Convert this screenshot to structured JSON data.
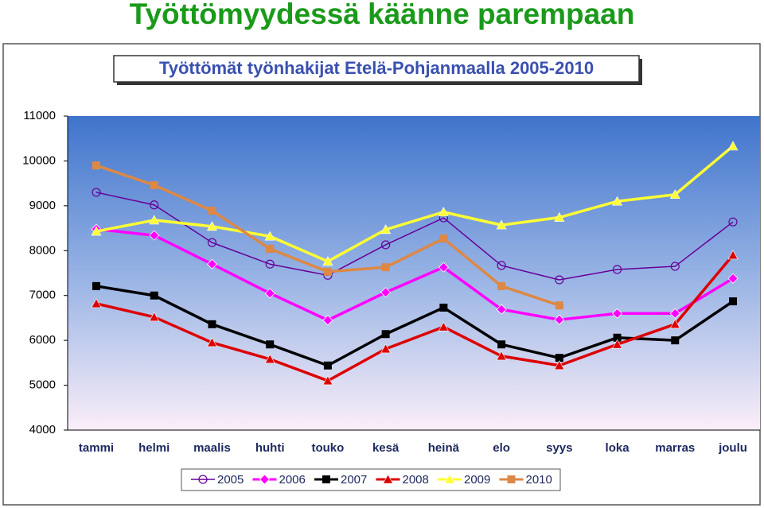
{
  "heading": "Työttömyydessä käänne parempaan",
  "chart_data": {
    "type": "line",
    "title": "Työttömät työnhakijat Etelä-Pohjanmaalla 2005-2010",
    "categories": [
      "tammi",
      "helmi",
      "maalis",
      "huhti",
      "touko",
      "kesä",
      "heinä",
      "elo",
      "syys",
      "loka",
      "marras",
      "joulu"
    ],
    "ylim": [
      4000,
      11000
    ],
    "yticks": [
      4000,
      5000,
      6000,
      7000,
      8000,
      9000,
      10000,
      11000
    ],
    "legend": "bottom",
    "series": [
      {
        "name": "2005",
        "color": "#660099",
        "marker": "circle",
        "values": [
          9300,
          9020,
          8180,
          7700,
          7450,
          8130,
          8730,
          7670,
          7350,
          7580,
          7650,
          8640
        ]
      },
      {
        "name": "2006",
        "color": "#ff00ff",
        "marker": "diamond",
        "values": [
          8480,
          8340,
          7700,
          7050,
          6450,
          7070,
          7630,
          6690,
          6460,
          6600,
          6600,
          7380
        ]
      },
      {
        "name": "2007",
        "color": "#000000",
        "marker": "square",
        "values": [
          7210,
          7000,
          6360,
          5910,
          5440,
          6140,
          6730,
          5910,
          5610,
          6060,
          6000,
          6870
        ]
      },
      {
        "name": "2008",
        "color": "#dd0000",
        "marker": "triangle",
        "values": [
          6820,
          6520,
          5950,
          5580,
          5100,
          5810,
          6300,
          5650,
          5440,
          5910,
          6360,
          7900
        ]
      },
      {
        "name": "2009",
        "color": "#ffff33",
        "marker": "triangle",
        "values": [
          8430,
          8680,
          8540,
          8320,
          7760,
          8470,
          8860,
          8570,
          8740,
          9100,
          9250,
          10330
        ]
      },
      {
        "name": "2010",
        "color": "#dd8844",
        "marker": "square",
        "values": [
          9900,
          9460,
          8890,
          8040,
          7530,
          7630,
          8270,
          7210,
          6780,
          null,
          null,
          null
        ]
      }
    ]
  }
}
